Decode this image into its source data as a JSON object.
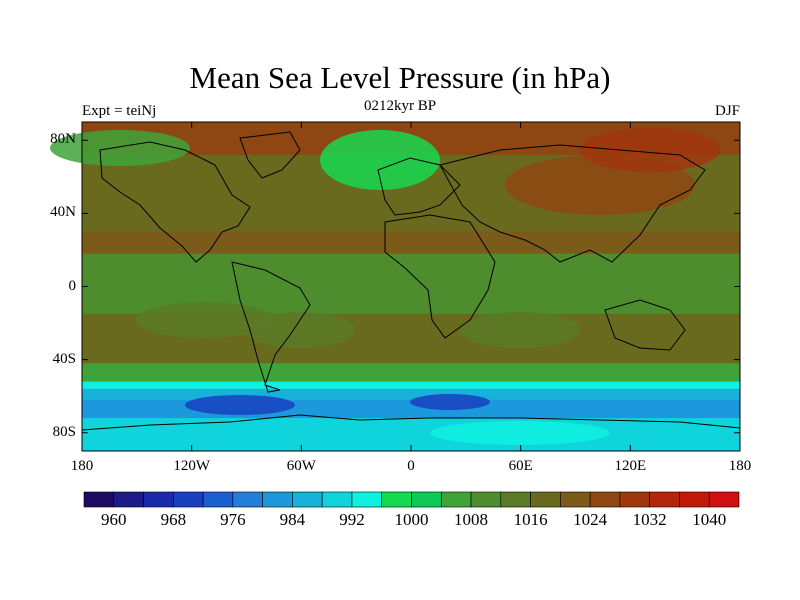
{
  "figure": {
    "title": "Mean Sea Level Pressure (in hPa)",
    "subtitle": "0212kyr BP",
    "left_label": "Expt = teiNj",
    "right_label": "DJF"
  },
  "axes": {
    "lat_ticks": [
      {
        "label": "80N",
        "lat": 80
      },
      {
        "label": "40N",
        "lat": 40
      },
      {
        "label": "0",
        "lat": 0
      },
      {
        "label": "40S",
        "lat": -40
      },
      {
        "label": "80S",
        "lat": -80
      }
    ],
    "lon_ticks": [
      {
        "label": "180",
        "lon": -180
      },
      {
        "label": "120W",
        "lon": -120
      },
      {
        "label": "60W",
        "lon": -60
      },
      {
        "label": "0",
        "lon": 0
      },
      {
        "label": "60E",
        "lon": 60
      },
      {
        "label": "120E",
        "lon": 120
      },
      {
        "label": "180",
        "lon": 180
      }
    ],
    "lat_range": [
      -90,
      90
    ],
    "lon_range": [
      -180,
      180
    ]
  },
  "colorbar": {
    "levels": [
      956,
      960,
      964,
      968,
      972,
      976,
      980,
      984,
      988,
      992,
      996,
      1000,
      1004,
      1008,
      1012,
      1016,
      1020,
      1024,
      1028,
      1032,
      1036,
      1040,
      1044
    ],
    "colors": [
      "#1f0a63",
      "#1d1a8c",
      "#1b2aa8",
      "#1840bf",
      "#1a5fd0",
      "#1f7fda",
      "#1c98dc",
      "#16b2da",
      "#10d4dc",
      "#0ff0e0",
      "#18d850",
      "#10c858",
      "#3fa33a",
      "#4e8d2e",
      "#5a7a26",
      "#6a6a1e",
      "#7c5a19",
      "#8e4612",
      "#a0360e",
      "#b1260c",
      "#c01a0a",
      "#d01010"
    ],
    "labels": [
      {
        "text": "960",
        "value": 960
      },
      {
        "text": "968",
        "value": 968
      },
      {
        "text": "976",
        "value": 976
      },
      {
        "text": "984",
        "value": 984
      },
      {
        "text": "992",
        "value": 992
      },
      {
        "text": "1000",
        "value": 1000
      },
      {
        "text": "1008",
        "value": 1008
      },
      {
        "text": "1016",
        "value": 1016
      },
      {
        "text": "1024",
        "value": 1024
      },
      {
        "text": "1032",
        "value": 1032
      },
      {
        "text": "1040",
        "value": 1040
      }
    ]
  },
  "map_field": {
    "variable": "mean_sea_level_pressure",
    "units": "hPa",
    "bands": [
      {
        "lat_from": 90,
        "lat_to": 72,
        "hpa": 1024
      },
      {
        "lat_from": 72,
        "lat_to": 55,
        "hpa": 1018
      },
      {
        "lat_from": 55,
        "lat_to": 30,
        "hpa": 1016
      },
      {
        "lat_from": 30,
        "lat_to": 18,
        "hpa": 1020
      },
      {
        "lat_from": 18,
        "lat_to": -15,
        "hpa": 1010
      },
      {
        "lat_from": -15,
        "lat_to": -42,
        "hpa": 1016
      },
      {
        "lat_from": -42,
        "lat_to": -52,
        "hpa": 1004
      },
      {
        "lat_from": -52,
        "lat_to": -56,
        "hpa": 994
      },
      {
        "lat_from": -56,
        "lat_to": -62,
        "hpa": 984
      },
      {
        "lat_from": -62,
        "lat_to": -72,
        "hpa": 980
      },
      {
        "lat_from": -72,
        "lat_to": -90,
        "hpa": 988
      }
    ]
  }
}
